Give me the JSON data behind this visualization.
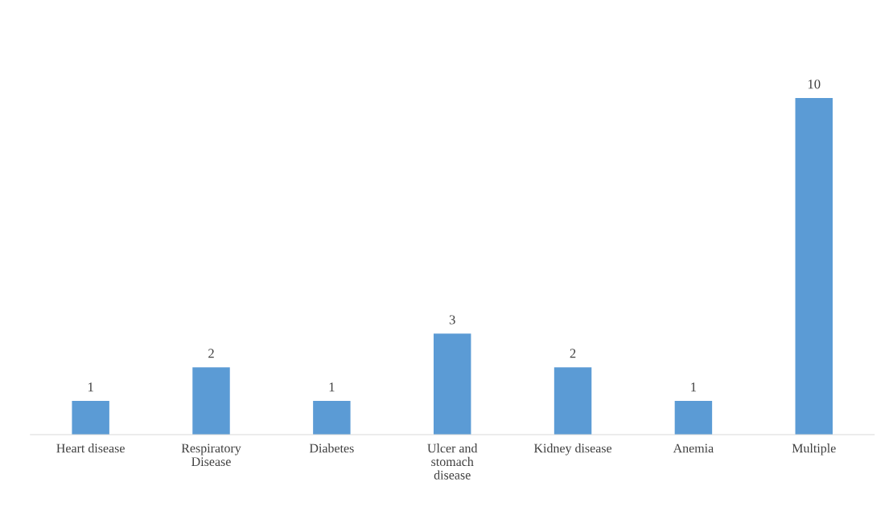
{
  "chart_data": {
    "type": "bar",
    "categories": [
      "Heart disease",
      "Respiratory\nDisease",
      "Diabetes",
      "Ulcer and\nstomach\ndisease",
      "Kidney disease",
      "Anemia",
      "Multiple"
    ],
    "values": [
      1,
      2,
      1,
      3,
      2,
      1,
      10
    ],
    "color": "#5b9bd5",
    "data_labels": true,
    "grid": false,
    "legend": false
  }
}
